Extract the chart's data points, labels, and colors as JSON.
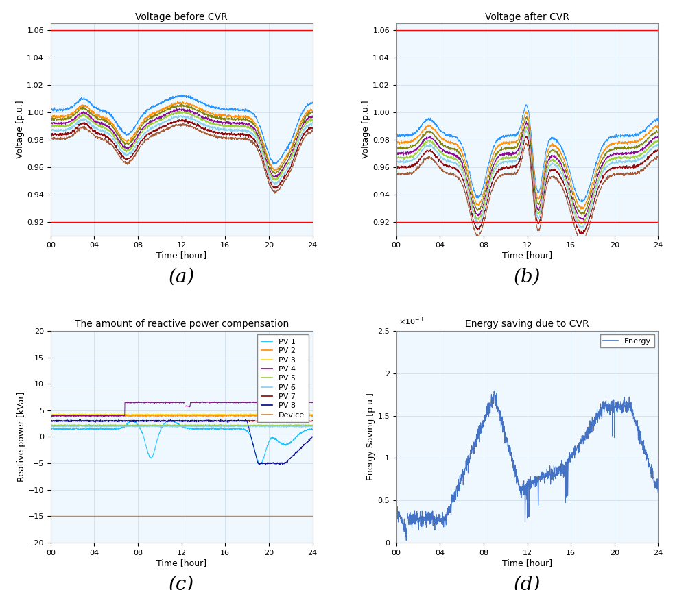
{
  "title_a": "Voltage before CVR",
  "title_b": "Voltage after CVR",
  "title_c": "The amount of reactive power compensation",
  "title_d": "Energy saving due to CVR",
  "xlabel": "Time [hour]",
  "ylabel_ab": "Voltage [p.u.]",
  "ylabel_c": "Reative power [kVar]",
  "ylabel_d": "Energy Saving [p.u.]",
  "label_a": "(a)",
  "label_b": "(b)",
  "label_c": "(c)",
  "label_d": "(d)",
  "xlim": [
    0,
    24
  ],
  "ylim_ab": [
    0.91,
    1.065
  ],
  "ylim_c": [
    -20,
    20
  ],
  "ylim_d": [
    0,
    0.0025
  ],
  "xticks": [
    0,
    4,
    8,
    12,
    16,
    20,
    24
  ],
  "xticklabels": [
    "00",
    "04",
    "08",
    "12",
    "16",
    "20",
    "24"
  ],
  "voltage_upper": 1.06,
  "voltage_lower": 0.92,
  "reactive_lower": -15.0,
  "n_points": 1440,
  "subplot_label_fontsize": 20,
  "axis_label_fontsize": 9,
  "title_fontsize": 10,
  "tick_fontsize": 8,
  "legend_fontsize": 8,
  "bg_color": "#ffffff",
  "plot_bg_color": "#f0f8ff",
  "grid_color": "#c8d8e8",
  "grid_alpha": 0.8,
  "colors_voltage": [
    "#1e90ff",
    "#ff8c00",
    "#808000",
    "#8b008b",
    "#9acd32",
    "#87ceeb",
    "#8b0000",
    "#a0522d"
  ],
  "colors_reactive": [
    "#00bfff",
    "#ff8c00",
    "#ffd700",
    "#800080",
    "#9acd32",
    "#87ceeb",
    "#8b0000",
    "#00008b"
  ],
  "color_device": "#cd853f",
  "color_energy": "#4472c4"
}
